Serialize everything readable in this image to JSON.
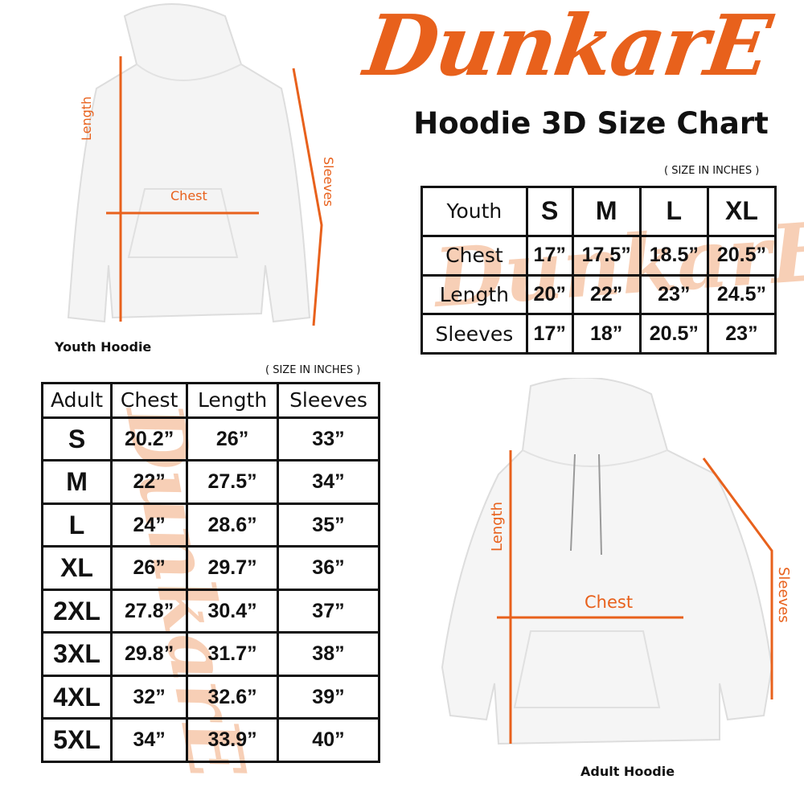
{
  "logo": {
    "text": "DunkarE",
    "color": "#e8611c"
  },
  "title": "Hoodie 3D Size Chart",
  "youth": {
    "caption": "Youth Hoodie",
    "unit_note": "( SIZE IN INCHES )",
    "labels": {
      "length": "Length",
      "chest": "Chest",
      "sleeves": "Sleeves"
    },
    "header": [
      "Youth",
      "S",
      "M",
      "L",
      "XL"
    ],
    "rows": [
      [
        "Chest",
        "17”",
        "17.5”",
        "18.5”",
        "20.5”"
      ],
      [
        "Length",
        "20”",
        "22”",
        "23”",
        "24.5”"
      ],
      [
        "Sleeves",
        "17”",
        "18”",
        "20.5”",
        "23”"
      ]
    ]
  },
  "adult": {
    "caption": "Adult Hoodie",
    "unit_note": "( SIZE IN INCHES )",
    "labels": {
      "length": "Length",
      "chest": "Chest",
      "sleeves": "Sleeves"
    },
    "header": [
      "Adult",
      "Chest",
      "Length",
      "Sleeves"
    ],
    "rows": [
      [
        "S",
        "20.2”",
        "26”",
        "33”"
      ],
      [
        "M",
        "22”",
        "27.5”",
        "34”"
      ],
      [
        "L",
        "24”",
        "28.6”",
        "35”"
      ],
      [
        "XL",
        "26”",
        "29.7”",
        "36”"
      ],
      [
        "2XL",
        "27.8”",
        "30.4”",
        "37”"
      ],
      [
        "3XL",
        "29.8”",
        "31.7”",
        "38”"
      ],
      [
        "4XL",
        "32”",
        "32.6”",
        "39”"
      ],
      [
        "5XL",
        "34”",
        "33.9”",
        "40”"
      ]
    ]
  },
  "colors": {
    "accent": "#e8611c",
    "watermark": "#f6c4a4",
    "border": "#111111"
  }
}
